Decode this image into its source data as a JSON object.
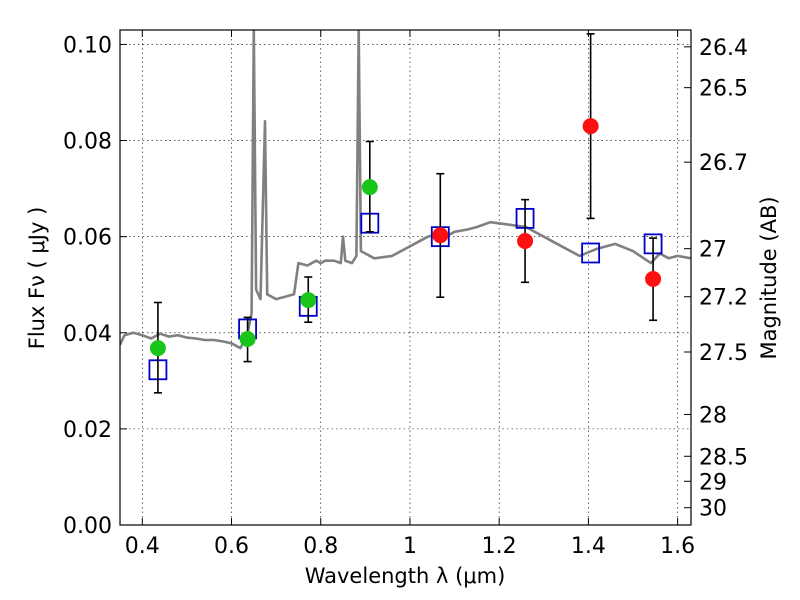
{
  "chart_data": {
    "type": "scatter",
    "xlabel": "Wavelength  λ (μm)",
    "ylabel": "Flux  Fν  ( μJy )",
    "y2label": "Magnitude (AB)",
    "xlim": [
      0.35,
      1.63
    ],
    "ylim": [
      0.0,
      0.103
    ],
    "x_ticks": [
      0.4,
      0.6,
      0.8,
      1.0,
      1.2,
      1.4,
      1.6
    ],
    "x_tick_labels": [
      "0.4",
      "0.6",
      "0.8",
      "1",
      "1.2",
      "1.4",
      "1.6"
    ],
    "y_ticks": [
      0.0,
      0.02,
      0.04,
      0.06,
      0.08,
      0.1
    ],
    "y_tick_labels": [
      "0.00",
      "0.02",
      "0.04",
      "0.06",
      "0.08",
      "0.10"
    ],
    "y2_ticks": [
      {
        "label": "26.4",
        "flux": 0.0995
      },
      {
        "label": "26.5",
        "flux": 0.091
      },
      {
        "label": "26.7",
        "flux": 0.0755
      },
      {
        "label": "27",
        "flux": 0.0575
      },
      {
        "label": "27.2",
        "flux": 0.0475
      },
      {
        "label": "27.5",
        "flux": 0.036
      },
      {
        "label": "28",
        "flux": 0.023
      },
      {
        "label": "28.5",
        "flux": 0.0143
      },
      {
        "label": "29",
        "flux": 0.0091
      },
      {
        "label": "30",
        "flux": 0.0036
      }
    ],
    "grid": true,
    "series": [
      {
        "kind": "spectrum",
        "color": "#808080",
        "points": [
          [
            0.35,
            0.0375
          ],
          [
            0.36,
            0.0395
          ],
          [
            0.38,
            0.04
          ],
          [
            0.4,
            0.0395
          ],
          [
            0.42,
            0.0388
          ],
          [
            0.44,
            0.0398
          ],
          [
            0.46,
            0.0392
          ],
          [
            0.48,
            0.0395
          ],
          [
            0.5,
            0.039
          ],
          [
            0.52,
            0.0388
          ],
          [
            0.54,
            0.0385
          ],
          [
            0.56,
            0.0385
          ],
          [
            0.58,
            0.0382
          ],
          [
            0.6,
            0.0378
          ],
          [
            0.62,
            0.0368
          ],
          [
            0.635,
            0.0395
          ],
          [
            0.645,
            0.044
          ],
          [
            0.65,
            0.103
          ],
          [
            0.655,
            0.049
          ],
          [
            0.665,
            0.047
          ],
          [
            0.675,
            0.084
          ],
          [
            0.68,
            0.048
          ],
          [
            0.7,
            0.047
          ],
          [
            0.72,
            0.0475
          ],
          [
            0.74,
            0.048
          ],
          [
            0.75,
            0.0545
          ],
          [
            0.77,
            0.054
          ],
          [
            0.79,
            0.055
          ],
          [
            0.8,
            0.0545
          ],
          [
            0.81,
            0.055
          ],
          [
            0.83,
            0.055
          ],
          [
            0.845,
            0.0545
          ],
          [
            0.85,
            0.06
          ],
          [
            0.855,
            0.055
          ],
          [
            0.87,
            0.0545
          ],
          [
            0.88,
            0.056
          ],
          [
            0.885,
            0.103
          ],
          [
            0.89,
            0.057
          ],
          [
            0.92,
            0.0555
          ],
          [
            0.96,
            0.056
          ],
          [
            1.0,
            0.058
          ],
          [
            1.04,
            0.06
          ],
          [
            1.06,
            0.0605
          ],
          [
            1.08,
            0.06
          ],
          [
            1.1,
            0.061
          ],
          [
            1.13,
            0.0615
          ],
          [
            1.15,
            0.062
          ],
          [
            1.18,
            0.063
          ],
          [
            1.22,
            0.0625
          ],
          [
            1.26,
            0.062
          ],
          [
            1.3,
            0.06
          ],
          [
            1.34,
            0.058
          ],
          [
            1.38,
            0.056
          ],
          [
            1.42,
            0.0575
          ],
          [
            1.46,
            0.0585
          ],
          [
            1.5,
            0.057
          ],
          [
            1.54,
            0.0545
          ],
          [
            1.56,
            0.0565
          ],
          [
            1.58,
            0.0555
          ],
          [
            1.6,
            0.056
          ],
          [
            1.63,
            0.0555
          ]
        ]
      },
      {
        "kind": "model_squares",
        "color": "#0000cc",
        "points": [
          [
            0.435,
            0.0323
          ],
          [
            0.636,
            0.0408
          ],
          [
            0.772,
            0.0455
          ],
          [
            0.91,
            0.0628
          ],
          [
            1.068,
            0.06
          ],
          [
            1.258,
            0.0638
          ],
          [
            1.405,
            0.0566
          ],
          [
            1.545,
            0.0585
          ]
        ]
      },
      {
        "kind": "green_detections",
        "color": "#19c519",
        "points": [
          {
            "x": 0.435,
            "y": 0.0368,
            "err": [
              0.0275,
              0.0463
            ]
          },
          {
            "x": 0.636,
            "y": 0.0387,
            "err": [
              0.034,
              0.0432
            ]
          },
          {
            "x": 0.772,
            "y": 0.0468,
            "err": [
              0.0422,
              0.0516
            ]
          },
          {
            "x": 0.91,
            "y": 0.0703,
            "err": [
              0.061,
              0.0798
            ]
          }
        ]
      },
      {
        "kind": "red_detections",
        "color": "#ff1010",
        "points": [
          {
            "x": 1.068,
            "y": 0.0603,
            "err": [
              0.0474,
              0.0731
            ]
          },
          {
            "x": 1.258,
            "y": 0.0591,
            "err": [
              0.0505,
              0.0677
            ]
          },
          {
            "x": 1.405,
            "y": 0.083,
            "err": [
              0.0638,
              0.1022
            ]
          },
          {
            "x": 1.545,
            "y": 0.0512,
            "err": [
              0.0426,
              0.0597
            ]
          }
        ]
      }
    ]
  }
}
